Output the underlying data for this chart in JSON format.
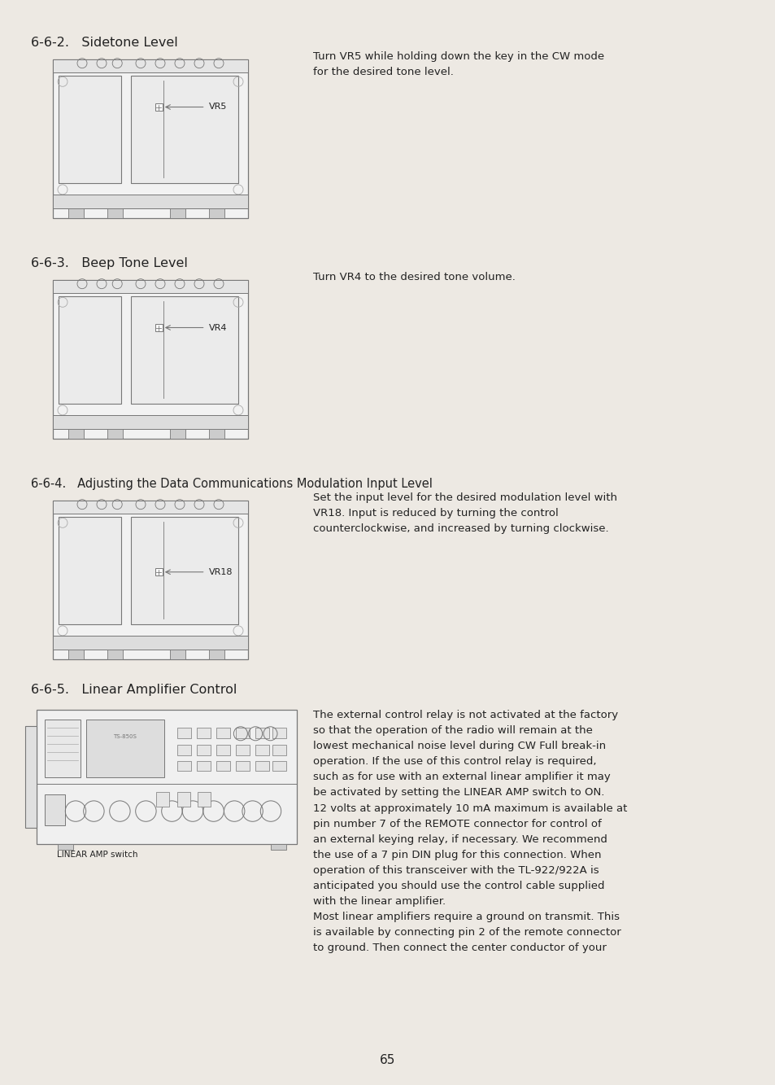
{
  "bg_color": "#ede9e3",
  "text_color": "#222222",
  "gray": "#777777",
  "lgray": "#aaaaaa",
  "title_662": "6-6-2.   Sidetone Level",
  "title_663": "6-6-3.   Beep Tone Level",
  "title_664": "6-6-4.   Adjusting the Data Communications Modulation Input Level",
  "title_665": "6-6-5.   Linear Amplifier Control",
  "text_662": "Turn VR5 while holding down the key in the CW mode\nfor the desired tone level.",
  "text_663": "Turn VR4 to the desired tone volume.",
  "text_664_l1": "Set the input level for the desired modulation level with",
  "text_664_l2": "VR18. Input is reduced by turning the control",
  "text_664_l3": "counterclockwise, and increased by turning clockwise.",
  "label_vr5": "VR5",
  "label_vr4": "VR4",
  "label_vr18": "VR18",
  "label_linear_amp": "LINEAR AMP switch",
  "text_665_p1": "The external control relay is not activated at the factory\nso that the operation of the radio will remain at the\nlowest mechanical noise level during CW Full break-in\noperation. If the use of this control relay is required,\nsuch as for use with an external linear amplifier it may\nbe activated by setting the LINEAR AMP switch to ON.",
  "text_665_p2": "12 volts at approximately 10 mA maximum is available at\npin number 7 of the REMOTE connector for control of\nan external keying relay, if necessary. We recommend\nthe use of a 7 pin DIN plug for this connection. When\noperation of this transceiver with the TL-922/922A is\nanticipated you should use the control cable supplied\nwith the linear amplifier.\nMost linear amplifiers require a ground on transmit. This\nis available by connecting pin 2 of the remote connector\nto ground. Then connect the center conductor of your",
  "page_number": "65"
}
